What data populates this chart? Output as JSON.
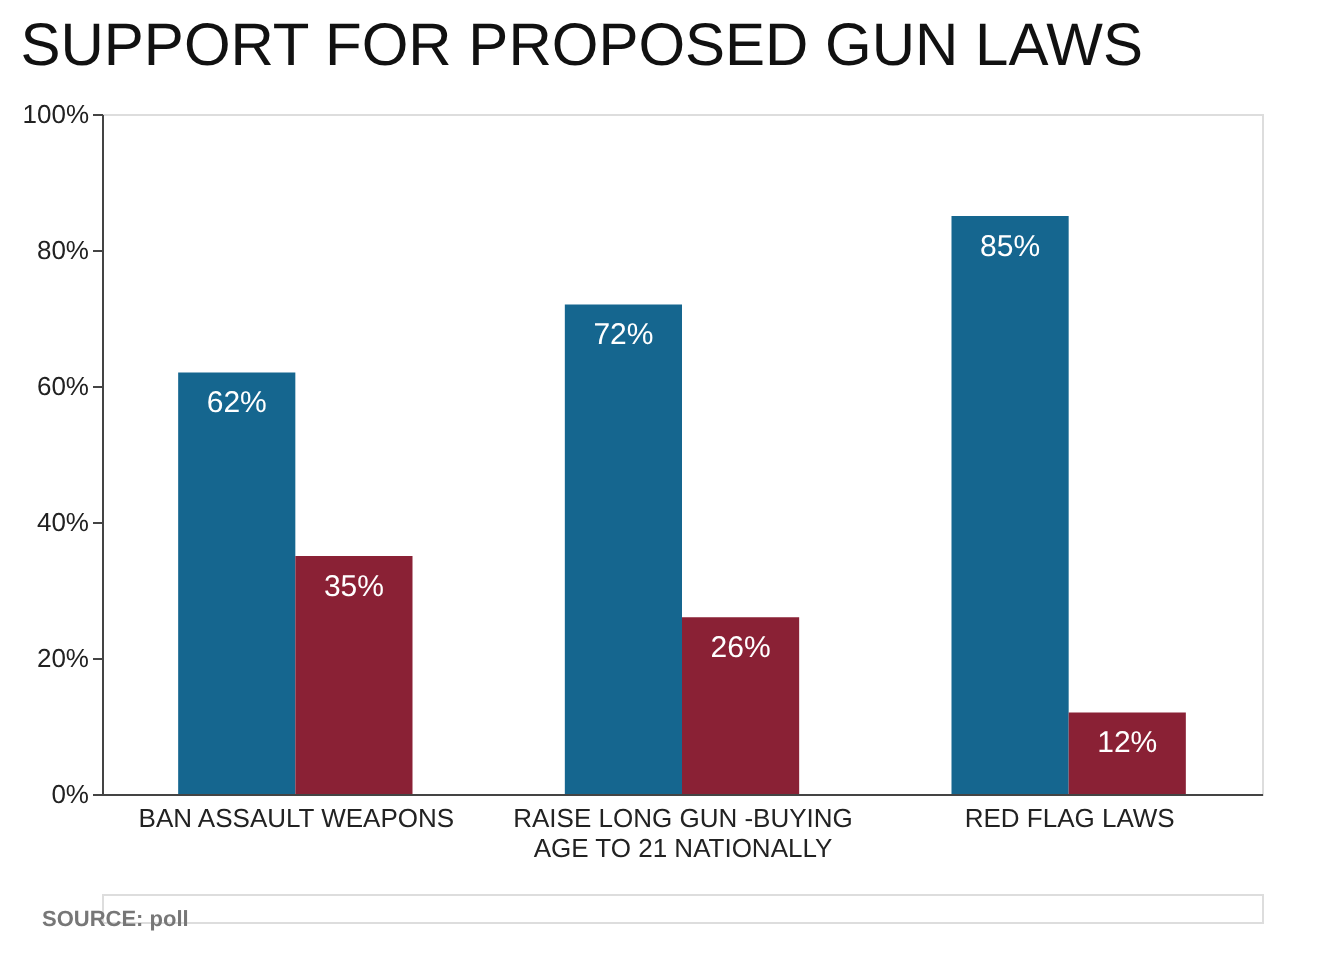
{
  "chart_data": {
    "type": "bar",
    "title": "SUPPORT FOR PROPOSED GUN LAWS",
    "categories": [
      "BAN ASSAULT WEAPONS",
      "RAISE LONG GUN -BUYING\nAGE TO 21 NATIONALLY",
      "RED FLAG LAWS"
    ],
    "series": [
      {
        "color": "#15668f",
        "values": [
          62,
          72,
          85
        ],
        "value_labels": [
          "62%",
          "72%",
          "85%"
        ]
      },
      {
        "color": "#8a2135",
        "values": [
          35,
          26,
          12
        ],
        "value_labels": [
          "35%",
          "26%",
          "12%"
        ]
      }
    ],
    "ylim": [
      0,
      100
    ],
    "yticks": [
      {
        "value": 0,
        "label": "0%"
      },
      {
        "value": 20,
        "label": "20%"
      },
      {
        "value": 40,
        "label": "40%"
      },
      {
        "value": 60,
        "label": "60%"
      },
      {
        "value": 80,
        "label": "80%"
      },
      {
        "value": 100,
        "label": "100%"
      }
    ],
    "grid": false,
    "legend": false,
    "annotations": [
      "SOURCE: poll"
    ]
  }
}
